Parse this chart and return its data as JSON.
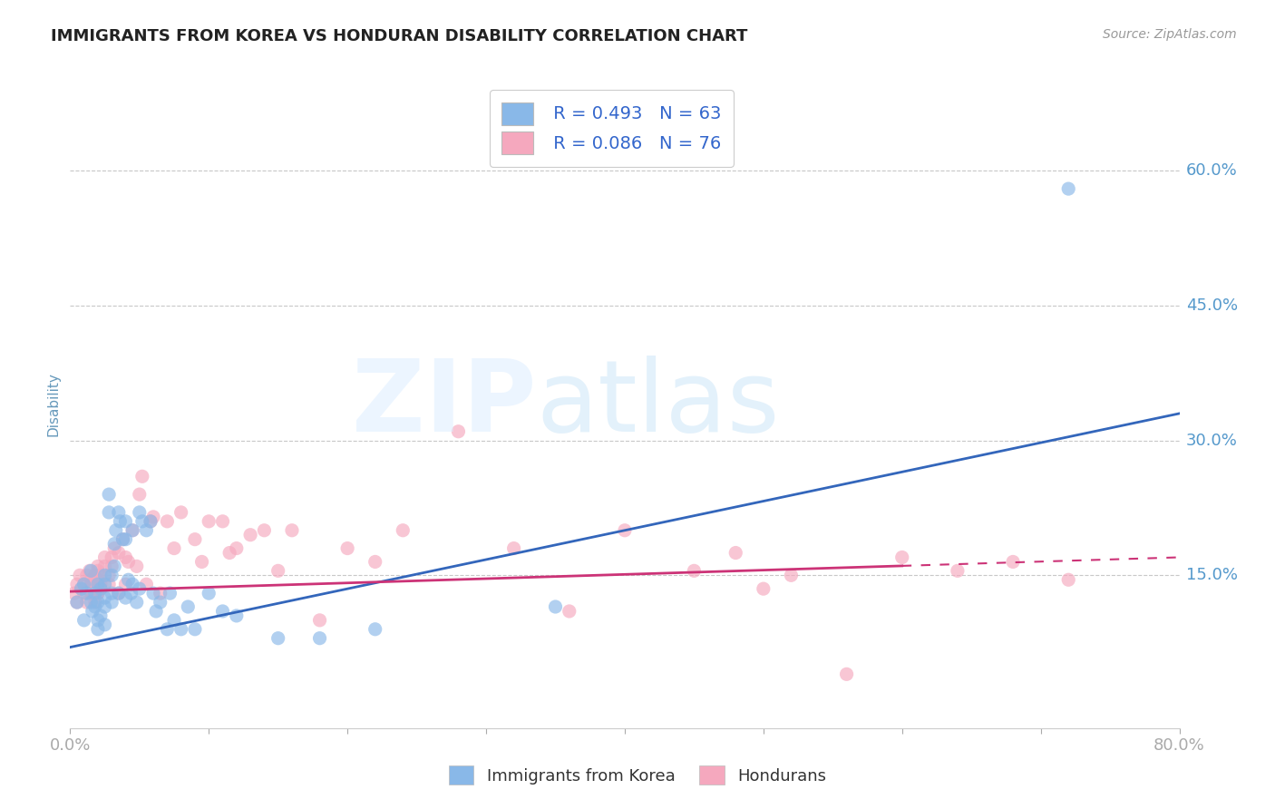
{
  "title": "IMMIGRANTS FROM KOREA VS HONDURAN DISABILITY CORRELATION CHART",
  "source_text": "Source: ZipAtlas.com",
  "ylabel": "Disability",
  "xlim": [
    0.0,
    0.8
  ],
  "ylim": [
    -0.02,
    0.7
  ],
  "xtick_positions": [
    0.0,
    0.1,
    0.2,
    0.3,
    0.4,
    0.5,
    0.6,
    0.7,
    0.8
  ],
  "xticklabels": [
    "0.0%",
    "",
    "",
    "",
    "",
    "",
    "",
    "",
    "80.0%"
  ],
  "yticks_right": [
    0.15,
    0.3,
    0.45,
    0.6
  ],
  "ytick_labels_right": [
    "15.0%",
    "30.0%",
    "45.0%",
    "60.0%"
  ],
  "background_color": "#ffffff",
  "grid_color": "#c8c8c8",
  "legend_r1": "R = 0.493",
  "legend_n1": "N = 63",
  "legend_r2": "R = 0.086",
  "legend_n2": "N = 76",
  "korea_color": "#89b8e8",
  "honduran_color": "#f5a8be",
  "korea_line_color": "#3366bb",
  "honduran_line_color": "#cc3377",
  "title_color": "#222222",
  "tick_label_color": "#5599cc",
  "ylabel_color": "#6699bb",
  "korea_scatter_x": [
    0.005,
    0.008,
    0.01,
    0.01,
    0.012,
    0.015,
    0.015,
    0.016,
    0.018,
    0.018,
    0.02,
    0.02,
    0.02,
    0.02,
    0.022,
    0.022,
    0.025,
    0.025,
    0.025,
    0.025,
    0.025,
    0.028,
    0.028,
    0.03,
    0.03,
    0.03,
    0.032,
    0.032,
    0.033,
    0.035,
    0.035,
    0.036,
    0.038,
    0.04,
    0.04,
    0.04,
    0.042,
    0.044,
    0.045,
    0.045,
    0.048,
    0.05,
    0.05,
    0.052,
    0.055,
    0.058,
    0.06,
    0.062,
    0.065,
    0.07,
    0.072,
    0.075,
    0.08,
    0.085,
    0.09,
    0.1,
    0.11,
    0.12,
    0.15,
    0.18,
    0.22,
    0.35,
    0.72
  ],
  "korea_scatter_y": [
    0.12,
    0.135,
    0.1,
    0.14,
    0.13,
    0.155,
    0.12,
    0.11,
    0.115,
    0.13,
    0.14,
    0.12,
    0.1,
    0.09,
    0.135,
    0.105,
    0.14,
    0.125,
    0.15,
    0.115,
    0.095,
    0.22,
    0.24,
    0.13,
    0.12,
    0.15,
    0.16,
    0.185,
    0.2,
    0.13,
    0.22,
    0.21,
    0.19,
    0.125,
    0.21,
    0.19,
    0.145,
    0.13,
    0.2,
    0.14,
    0.12,
    0.22,
    0.135,
    0.21,
    0.2,
    0.21,
    0.13,
    0.11,
    0.12,
    0.09,
    0.13,
    0.1,
    0.09,
    0.115,
    0.09,
    0.13,
    0.11,
    0.105,
    0.08,
    0.08,
    0.09,
    0.115,
    0.58
  ],
  "honduran_scatter_x": [
    0.003,
    0.005,
    0.005,
    0.007,
    0.008,
    0.01,
    0.01,
    0.012,
    0.012,
    0.014,
    0.015,
    0.015,
    0.015,
    0.016,
    0.016,
    0.018,
    0.018,
    0.02,
    0.02,
    0.02,
    0.02,
    0.02,
    0.022,
    0.022,
    0.022,
    0.025,
    0.025,
    0.028,
    0.028,
    0.03,
    0.03,
    0.032,
    0.035,
    0.035,
    0.038,
    0.04,
    0.04,
    0.042,
    0.045,
    0.048,
    0.05,
    0.052,
    0.055,
    0.058,
    0.06,
    0.065,
    0.07,
    0.075,
    0.08,
    0.09,
    0.095,
    0.1,
    0.11,
    0.115,
    0.12,
    0.13,
    0.14,
    0.15,
    0.16,
    0.18,
    0.2,
    0.22,
    0.24,
    0.28,
    0.32,
    0.36,
    0.4,
    0.45,
    0.48,
    0.52,
    0.56,
    0.6,
    0.64,
    0.68,
    0.72,
    0.5
  ],
  "honduran_scatter_y": [
    0.13,
    0.14,
    0.12,
    0.15,
    0.135,
    0.14,
    0.13,
    0.15,
    0.12,
    0.155,
    0.14,
    0.13,
    0.145,
    0.14,
    0.13,
    0.15,
    0.12,
    0.13,
    0.145,
    0.155,
    0.16,
    0.13,
    0.15,
    0.14,
    0.135,
    0.16,
    0.17,
    0.15,
    0.14,
    0.16,
    0.17,
    0.18,
    0.175,
    0.13,
    0.19,
    0.17,
    0.14,
    0.165,
    0.2,
    0.16,
    0.24,
    0.26,
    0.14,
    0.21,
    0.215,
    0.13,
    0.21,
    0.18,
    0.22,
    0.19,
    0.165,
    0.21,
    0.21,
    0.175,
    0.18,
    0.195,
    0.2,
    0.155,
    0.2,
    0.1,
    0.18,
    0.165,
    0.2,
    0.31,
    0.18,
    0.11,
    0.2,
    0.155,
    0.175,
    0.15,
    0.04,
    0.17,
    0.155,
    0.165,
    0.145,
    0.135
  ],
  "korea_trend_x": [
    0.0,
    0.8
  ],
  "korea_trend_y": [
    0.07,
    0.33
  ],
  "honduran_trend_x": [
    0.0,
    0.8
  ],
  "honduran_trend_y": [
    0.132,
    0.17
  ],
  "honduran_trend_solid_end": 0.6
}
